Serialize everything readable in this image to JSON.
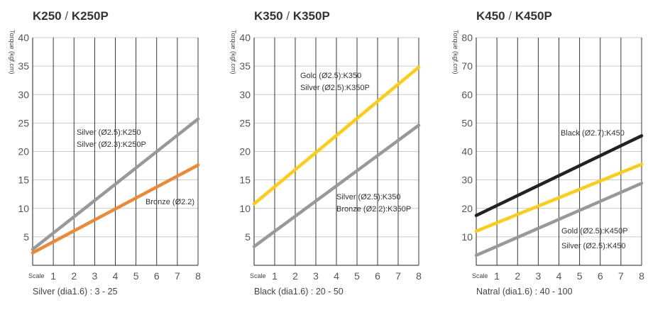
{
  "chart_data": [
    {
      "type": "line",
      "title_left": "K250",
      "title_sep": " / ",
      "title_right": "K250P",
      "ylabel": "Torque (kgf.cm)",
      "xlabel": "Scale",
      "footer": "Silver (dia1.6) : 3 - 25",
      "xlim": [
        0,
        8
      ],
      "ylim": [
        0,
        40
      ],
      "x_ticks": [
        1,
        2,
        3,
        4,
        5,
        6,
        7,
        8
      ],
      "y_ticks": [
        5,
        10,
        15,
        20,
        25,
        30,
        35,
        40
      ],
      "grid": true,
      "series": [
        {
          "color": "#999999",
          "x": [
            0,
            8
          ],
          "y": [
            2.8,
            25.7
          ],
          "labels": [
            "Silver (Ø2.5):K250",
            "Silver (Ø2.3):K250P"
          ]
        },
        {
          "color": "#ee8833",
          "x": [
            0,
            8
          ],
          "y": [
            2.2,
            17.6
          ],
          "labels": [
            "Bronze (Ø2.2)"
          ]
        }
      ]
    },
    {
      "type": "line",
      "title_left": "K350",
      "title_sep": " / ",
      "title_right": "K350P",
      "ylabel": "Torque (kgf.cm)",
      "xlabel": "Scale",
      "footer": "Black (dia1.6) : 20 - 50",
      "xlim": [
        0,
        8
      ],
      "ylim": [
        0,
        40
      ],
      "x_ticks": [
        1,
        2,
        3,
        4,
        5,
        6,
        7,
        8
      ],
      "y_ticks": [
        5,
        10,
        15,
        20,
        25,
        30,
        35,
        40
      ],
      "grid": true,
      "series": [
        {
          "color": "#ffcc11",
          "x": [
            0,
            8
          ],
          "y": [
            10.8,
            34.8
          ],
          "labels": [
            "Gold (Ø2.5):K350",
            "Silver (Ø2.5):K350P"
          ]
        },
        {
          "color": "#999999",
          "x": [
            0,
            8
          ],
          "y": [
            3.3,
            24.6
          ],
          "labels": [
            "Silver (Ø2.5):K350",
            "Bronze (Ø2.2):K350P"
          ]
        }
      ]
    },
    {
      "type": "line",
      "title_left": "K450",
      "title_sep": " / ",
      "title_right": "K450P",
      "ylabel": "Torque (kgf.cm)",
      "xlabel": "Scale",
      "footer": "Natral (dia1.6) : 40 - 100",
      "xlim": [
        0,
        8
      ],
      "ylim": [
        0,
        80
      ],
      "x_ticks": [
        1,
        2,
        3,
        4,
        5,
        6,
        7,
        8
      ],
      "y_ticks": [
        10,
        20,
        30,
        40,
        50,
        60,
        70,
        80
      ],
      "grid": true,
      "series": [
        {
          "color": "#222222",
          "x": [
            0,
            8
          ],
          "y": [
            17.5,
            45.5
          ],
          "labels": [
            "Black (Ø2.7):K450"
          ]
        },
        {
          "color": "#ffcc11",
          "x": [
            0,
            8
          ],
          "y": [
            12,
            35.5
          ],
          "labels": [
            "Gold (Ø2.5):K450P"
          ]
        },
        {
          "color": "#999999",
          "x": [
            0,
            8
          ],
          "y": [
            3.5,
            28.8
          ],
          "labels": [
            "Silver (Ø2.5):K450"
          ]
        }
      ]
    }
  ]
}
